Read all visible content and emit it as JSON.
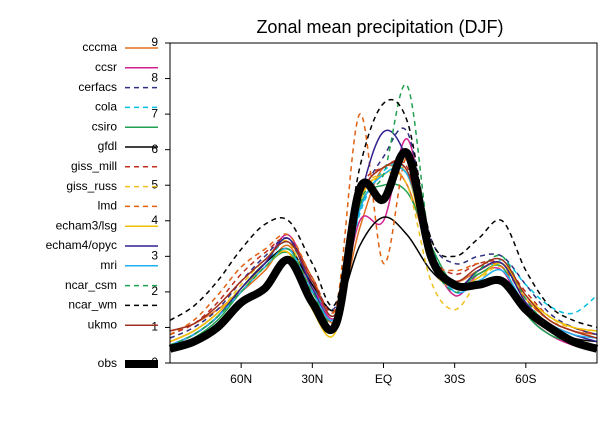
{
  "chart_data": {
    "type": "line",
    "title": "Zonal mean precipitation (DJF)",
    "x": [
      90,
      80,
      70,
      60,
      50,
      40,
      30,
      20,
      10,
      0,
      -10,
      -20,
      -30,
      -40,
      -50,
      -60,
      -70,
      -80,
      -90
    ],
    "xlim": [
      90,
      -90
    ],
    "xticks": [
      {
        "value": 60,
        "label": "60N"
      },
      {
        "value": 30,
        "label": "30N"
      },
      {
        "value": 0,
        "label": "EQ"
      },
      {
        "value": -30,
        "label": "30S"
      },
      {
        "value": -60,
        "label": "60S"
      }
    ],
    "ylim": [
      0,
      9
    ],
    "yticks": [
      0,
      1,
      2,
      3,
      4,
      5,
      6,
      7,
      8,
      9
    ],
    "series": [
      {
        "name": "cccma",
        "color": "#e07020",
        "linestyle": "solid",
        "values": [
          0.9,
          1.1,
          1.5,
          2.0,
          2.6,
          3.3,
          2.0,
          1.2,
          3.8,
          5.5,
          5.0,
          3.0,
          2.3,
          2.6,
          2.8,
          1.8,
          1.2,
          0.9,
          0.8
        ]
      },
      {
        "name": "ccsr",
        "color": "#d02090",
        "linestyle": "solid",
        "values": [
          0.6,
          0.9,
          1.4,
          2.1,
          2.8,
          3.6,
          2.2,
          1.3,
          4.0,
          4.0,
          6.3,
          3.2,
          1.9,
          2.5,
          2.6,
          1.4,
          0.8,
          0.5,
          0.4
        ]
      },
      {
        "name": "cerfacs",
        "color": "#303080",
        "linestyle": "dashed",
        "values": [
          0.7,
          1.0,
          1.5,
          2.3,
          3.0,
          3.5,
          2.3,
          1.6,
          4.5,
          5.8,
          6.5,
          3.5,
          2.8,
          3.0,
          3.0,
          2.2,
          1.4,
          1.0,
          0.8
        ]
      },
      {
        "name": "cola",
        "color": "#00c0e0",
        "linestyle": "dashed",
        "values": [
          0.5,
          0.8,
          1.3,
          2.1,
          2.8,
          3.4,
          2.2,
          1.4,
          4.2,
          5.4,
          5.4,
          3.3,
          2.0,
          2.4,
          2.9,
          2.2,
          1.6,
          1.4,
          1.9
        ]
      },
      {
        "name": "csiro",
        "color": "#20a050",
        "linestyle": "solid",
        "values": [
          0.4,
          0.7,
          1.2,
          2.0,
          2.7,
          3.1,
          2.0,
          1.3,
          4.4,
          5.0,
          4.8,
          3.3,
          2.2,
          2.5,
          2.7,
          1.4,
          0.8,
          0.6,
          0.5
        ]
      },
      {
        "name": "gfdl",
        "color": "#000000",
        "linestyle": "solid",
        "values": [
          0.5,
          0.8,
          1.3,
          2.1,
          2.8,
          3.2,
          2.2,
          1.5,
          3.3,
          4.1,
          3.6,
          2.6,
          2.1,
          2.3,
          2.3,
          1.5,
          1.0,
          0.7,
          0.6
        ]
      },
      {
        "name": "giss_mill",
        "color": "#c03020",
        "linestyle": "dashed",
        "values": [
          0.8,
          1.1,
          1.7,
          2.5,
          3.1,
          3.5,
          2.4,
          1.5,
          4.8,
          5.5,
          5.5,
          3.1,
          2.5,
          2.8,
          2.8,
          2.0,
          1.3,
          1.0,
          0.8
        ]
      },
      {
        "name": "giss_russ",
        "color": "#f0c020",
        "linestyle": "dashed",
        "values": [
          0.6,
          0.9,
          1.4,
          2.2,
          2.9,
          3.4,
          1.8,
          1.0,
          4.6,
          5.3,
          5.0,
          2.3,
          1.5,
          2.3,
          2.7,
          1.8,
          1.2,
          1.0,
          0.9
        ]
      },
      {
        "name": "lmd",
        "color": "#e06010",
        "linestyle": "dashed",
        "values": [
          0.8,
          1.2,
          1.9,
          2.7,
          3.2,
          3.6,
          2.4,
          1.6,
          7.0,
          2.8,
          5.8,
          3.0,
          2.6,
          2.8,
          2.7,
          1.8,
          1.2,
          0.9,
          0.7
        ]
      },
      {
        "name": "echam3/lsg",
        "color": "#f0c000",
        "linestyle": "solid",
        "values": [
          0.6,
          0.9,
          1.4,
          2.1,
          2.7,
          3.1,
          1.5,
          0.9,
          4.5,
          5.3,
          5.3,
          2.8,
          2.1,
          2.4,
          2.8,
          1.9,
          1.3,
          1.0,
          0.9
        ]
      },
      {
        "name": "echam4/opyc",
        "color": "#302090",
        "linestyle": "solid",
        "values": [
          0.5,
          0.8,
          1.3,
          2.1,
          2.8,
          3.5,
          2.1,
          1.3,
          4.6,
          6.5,
          5.7,
          3.0,
          2.1,
          2.6,
          2.8,
          1.7,
          1.1,
          0.8,
          0.6
        ]
      },
      {
        "name": "mri",
        "color": "#20b0f0",
        "linestyle": "solid",
        "values": [
          0.5,
          0.8,
          1.3,
          2.0,
          2.7,
          3.2,
          2.0,
          1.3,
          4.3,
          5.3,
          5.3,
          3.1,
          2.0,
          2.3,
          2.6,
          1.6,
          1.1,
          0.8,
          0.7
        ]
      },
      {
        "name": "ncar_csm",
        "color": "#20a050",
        "linestyle": "dashed",
        "values": [
          0.5,
          0.8,
          1.3,
          2.0,
          2.7,
          3.2,
          2.0,
          1.2,
          4.5,
          5.3,
          7.8,
          3.2,
          2.0,
          2.6,
          3.0,
          1.8,
          1.0,
          0.6,
          0.4
        ]
      },
      {
        "name": "ncar_wm",
        "color": "#000000",
        "linestyle": "dashed",
        "values": [
          1.2,
          1.6,
          2.3,
          3.2,
          3.9,
          4.0,
          2.8,
          1.7,
          5.5,
          7.3,
          6.8,
          3.5,
          3.0,
          3.5,
          4.0,
          2.6,
          1.6,
          1.2,
          1.0
        ]
      },
      {
        "name": "ukmo",
        "color": "#a03020",
        "linestyle": "solid",
        "values": [
          0.9,
          1.1,
          1.6,
          2.3,
          2.9,
          3.4,
          2.3,
          1.4,
          4.6,
          5.5,
          5.4,
          3.0,
          2.3,
          2.7,
          2.9,
          1.9,
          1.2,
          0.9,
          0.7
        ]
      },
      {
        "name": "obs",
        "color": "#000000",
        "linestyle": "bold",
        "values": [
          0.4,
          0.6,
          1.0,
          1.7,
          2.1,
          2.9,
          1.7,
          1.1,
          4.9,
          4.6,
          5.9,
          3.0,
          2.2,
          2.2,
          2.3,
          1.5,
          1.0,
          0.6,
          0.4
        ]
      }
    ]
  }
}
